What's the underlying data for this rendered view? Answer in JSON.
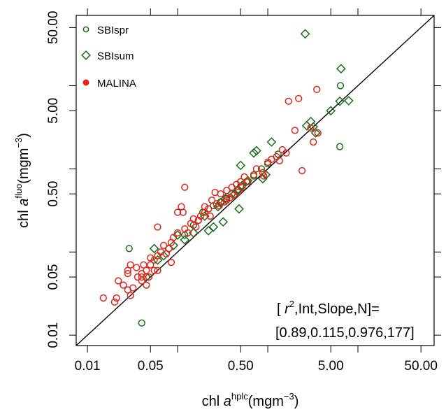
{
  "chart_data": {
    "type": "scatter",
    "title": "",
    "x_scale": "log10",
    "y_scale": "log10",
    "xlim": [
      0.0075,
      70
    ],
    "ylim": [
      0.0075,
      70
    ],
    "xlabel": {
      "main": "chl ",
      "italic": "a",
      "sup": "hplc",
      "unit_pre": "(mgm",
      "unit_sup": "−3",
      "unit_post": ")"
    },
    "ylabel": {
      "main": "chl ",
      "italic": "a",
      "sup": "fluo",
      "unit_pre": "(mgm",
      "unit_sup": "−3",
      "unit_post": ")"
    },
    "x_ticks": [
      {
        "v": 0.01,
        "label": "0.01"
      },
      {
        "v": 0.05,
        "label": "0.05"
      },
      {
        "v": 0.5,
        "label": "0.50"
      },
      {
        "v": 5,
        "label": "5.00"
      },
      {
        "v": 50,
        "label": "50.00"
      }
    ],
    "x_minor_ticks": [
      0.1,
      1,
      10
    ],
    "y_ticks": [
      {
        "v": 0.01,
        "label": "0.01"
      },
      {
        "v": 0.05,
        "label": "0.05"
      },
      {
        "v": 0.5,
        "label": "0.50"
      },
      {
        "v": 5,
        "label": "5.00"
      },
      {
        "v": 50,
        "label": "50.00"
      }
    ],
    "y_minor_ticks": [
      0.1,
      1,
      10
    ],
    "reference_line": "1:1",
    "legend_position": "top-left",
    "annotation": {
      "line1_pre": "[ ",
      "line1_r": "r",
      "line1_sup": "2",
      "line1_post": ",Int,Slope,N]=",
      "line2": "[0.89,0.115,0.976,177]"
    },
    "series": [
      {
        "name": "SBIspr",
        "marker": "circle",
        "color": "#1a6e1a",
        "points": [
          [
            0.029,
            0.11
          ],
          [
            0.04,
            0.014
          ],
          [
            0.045,
            0.05
          ],
          [
            0.12,
            0.16
          ],
          [
            0.15,
            0.21
          ],
          [
            0.17,
            0.24
          ],
          [
            0.19,
            0.3
          ],
          [
            0.22,
            0.33
          ],
          [
            0.25,
            0.36
          ],
          [
            0.3,
            0.4
          ],
          [
            0.35,
            0.44
          ],
          [
            0.4,
            0.5
          ],
          [
            0.46,
            0.56
          ],
          [
            0.5,
            0.62
          ],
          [
            0.58,
            0.7
          ],
          [
            0.7,
            0.82
          ],
          [
            0.85,
            1.0
          ],
          [
            1.0,
            1.15
          ],
          [
            1.3,
            1.5
          ],
          [
            6.4,
            10.0
          ],
          [
            6.3,
            1.85
          ]
        ]
      },
      {
        "name": "SBIsum",
        "marker": "diamond",
        "color": "#1a6e1a",
        "points": [
          [
            2.6,
            42.0
          ],
          [
            6.5,
            16.0
          ],
          [
            6.3,
            6.5
          ],
          [
            7.9,
            6.6
          ],
          [
            5.0,
            5.0
          ],
          [
            3.0,
            3.7
          ],
          [
            2.7,
            3.3
          ],
          [
            3.2,
            3.2
          ],
          [
            3.4,
            2.7
          ],
          [
            1.1,
            2.1
          ],
          [
            0.75,
            1.65
          ],
          [
            0.7,
            1.55
          ],
          [
            0.5,
            1.1
          ],
          [
            0.95,
            0.85
          ],
          [
            0.88,
            0.76
          ],
          [
            0.6,
            0.72
          ],
          [
            0.52,
            0.63
          ],
          [
            0.47,
            0.55
          ],
          [
            0.43,
            0.5
          ],
          [
            0.34,
            0.44
          ],
          [
            0.3,
            0.39
          ],
          [
            0.28,
            0.35
          ],
          [
            0.48,
            0.33
          ],
          [
            0.2,
            0.27
          ],
          [
            0.32,
            0.23
          ],
          [
            0.25,
            0.2
          ],
          [
            0.15,
            0.17
          ],
          [
            0.22,
            0.18
          ],
          [
            0.1,
            0.16
          ],
          [
            0.12,
            0.14
          ],
          [
            0.09,
            0.12
          ],
          [
            0.08,
            0.11
          ],
          [
            0.07,
            0.09
          ],
          [
            0.06,
            0.08
          ],
          [
            0.055,
            0.11
          ]
        ]
      },
      {
        "name": "MALINA",
        "marker": "circle",
        "color": "#e8221a",
        "points": [
          [
            3.5,
            9.0
          ],
          [
            2.2,
            7.0
          ],
          [
            1.7,
            6.5
          ],
          [
            3.0,
            3.1
          ],
          [
            3.6,
            2.7
          ],
          [
            3.2,
            2.1
          ],
          [
            2.0,
            2.9
          ],
          [
            1.45,
            1.7
          ],
          [
            1.6,
            1.55
          ],
          [
            1.25,
            1.4
          ],
          [
            1.35,
            1.25
          ],
          [
            1.1,
            1.3
          ],
          [
            2.4,
            0.95
          ],
          [
            1.0,
            1.2
          ],
          [
            0.75,
            1.0
          ],
          [
            0.88,
            0.9
          ],
          [
            0.9,
            0.82
          ],
          [
            0.7,
            0.85
          ],
          [
            0.6,
            0.7
          ],
          [
            0.55,
            0.8
          ],
          [
            0.5,
            0.7
          ],
          [
            0.45,
            0.65
          ],
          [
            0.52,
            0.6
          ],
          [
            0.4,
            0.6
          ],
          [
            0.35,
            0.55
          ],
          [
            0.47,
            0.52
          ],
          [
            0.42,
            0.48
          ],
          [
            0.38,
            0.45
          ],
          [
            0.35,
            0.42
          ],
          [
            0.3,
            0.5
          ],
          [
            0.26,
            0.52
          ],
          [
            0.24,
            0.42
          ],
          [
            0.27,
            0.38
          ],
          [
            0.33,
            0.4
          ],
          [
            0.29,
            0.36
          ],
          [
            0.22,
            0.33
          ],
          [
            0.2,
            0.35
          ],
          [
            0.2,
            0.3
          ],
          [
            0.23,
            0.27
          ],
          [
            0.18,
            0.27
          ],
          [
            0.17,
            0.24
          ],
          [
            0.15,
            0.25
          ],
          [
            0.14,
            0.22
          ],
          [
            0.16,
            0.2
          ],
          [
            0.12,
            0.6
          ],
          [
            0.11,
            0.35
          ],
          [
            0.115,
            0.3
          ],
          [
            0.1,
            0.3
          ],
          [
            0.12,
            0.19
          ],
          [
            0.13,
            0.17
          ],
          [
            0.1,
            0.17
          ],
          [
            0.09,
            0.15
          ],
          [
            0.085,
            0.13
          ],
          [
            0.07,
            0.12
          ],
          [
            0.08,
            0.11
          ],
          [
            0.075,
            0.095
          ],
          [
            0.065,
            0.1
          ],
          [
            0.06,
            0.09
          ],
          [
            0.055,
            0.08
          ],
          [
            0.05,
            0.085
          ],
          [
            0.055,
            0.06
          ],
          [
            0.045,
            0.06
          ],
          [
            0.042,
            0.07
          ],
          [
            0.048,
            0.05
          ],
          [
            0.04,
            0.055
          ],
          [
            0.04,
            0.045
          ],
          [
            0.035,
            0.065
          ],
          [
            0.06,
            0.2
          ],
          [
            0.085,
            0.075
          ],
          [
            0.03,
            0.07
          ],
          [
            0.06,
            0.06
          ],
          [
            0.045,
            0.04
          ],
          [
            0.05,
            0.07
          ],
          [
            0.04,
            0.05
          ],
          [
            0.025,
            0.04
          ],
          [
            0.028,
            0.035
          ],
          [
            0.03,
            0.03
          ],
          [
            0.032,
            0.037
          ],
          [
            0.022,
            0.045
          ],
          [
            0.02,
            0.025
          ],
          [
            0.015,
            0.028
          ],
          [
            0.021,
            0.028
          ],
          [
            0.028,
            0.055
          ],
          [
            0.028,
            0.06
          ],
          [
            0.036,
            0.05
          ]
        ]
      }
    ]
  }
}
